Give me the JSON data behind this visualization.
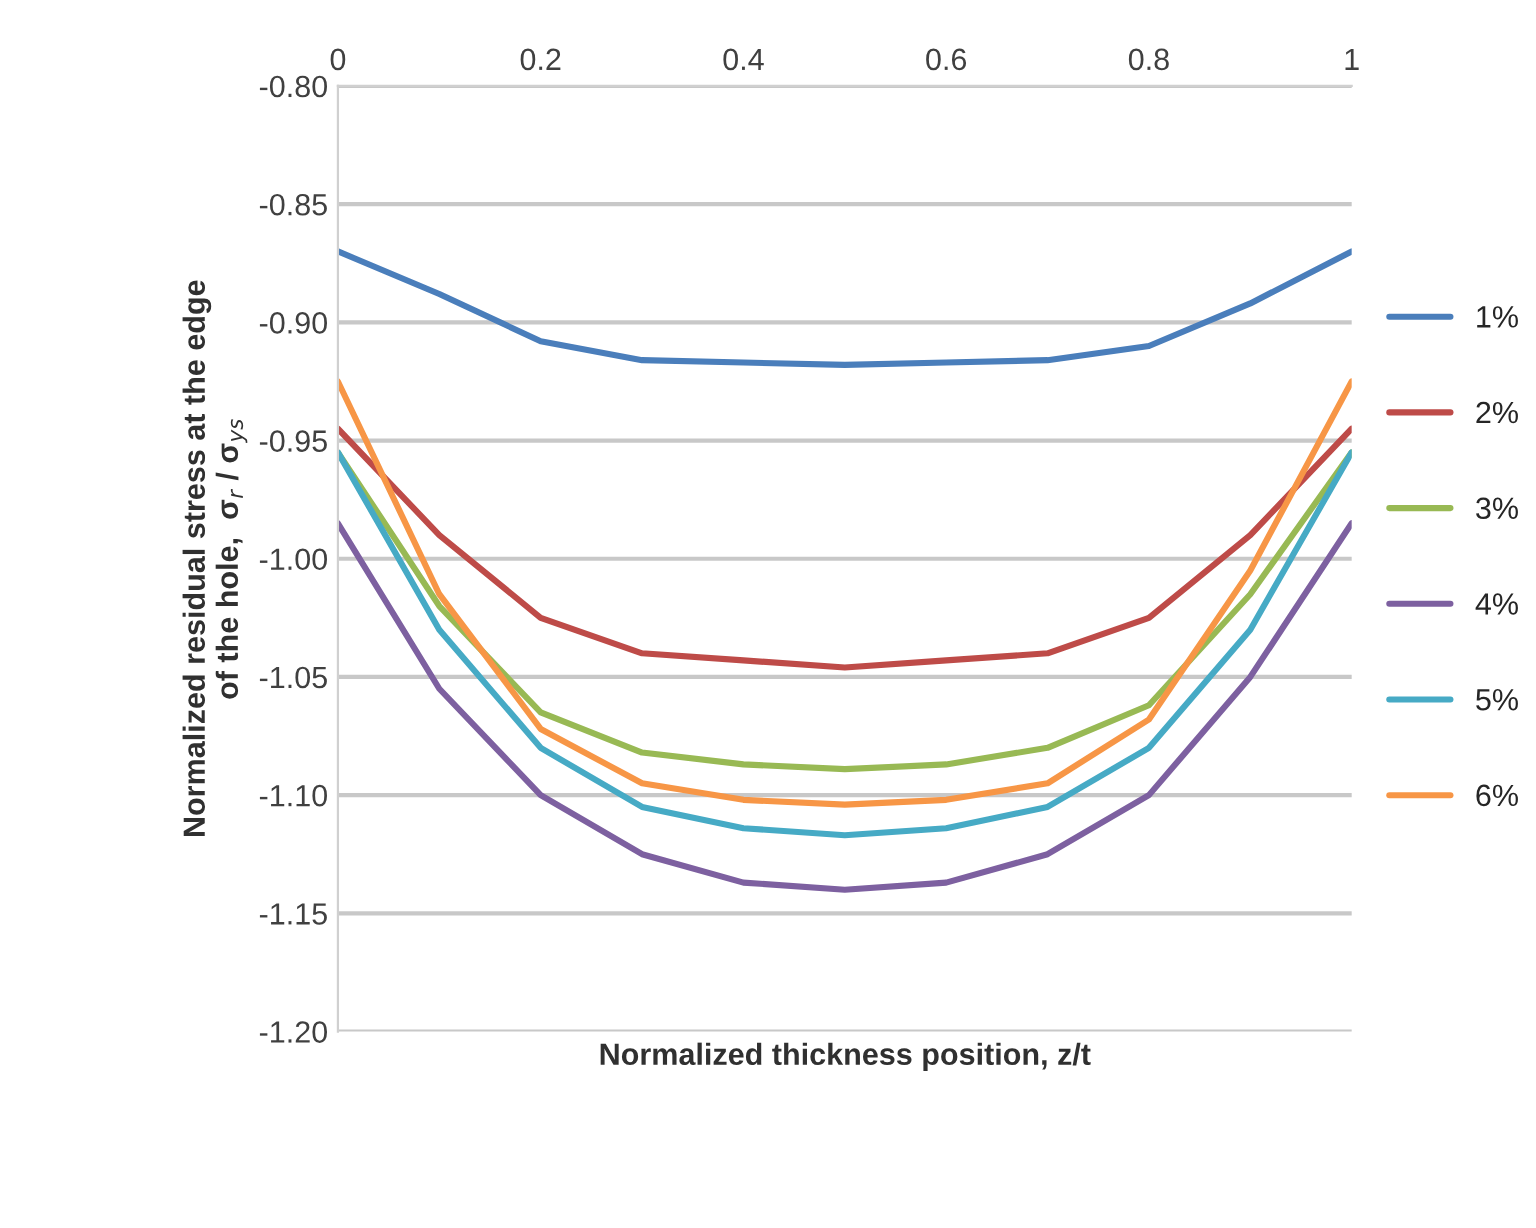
{
  "chart_data": {
    "type": "line",
    "xlabel": "Normalized thickness position, z/t",
    "ylabel": "Normalized residual stress at the edge\nof the hole,  σ$_{r}$ / σ$_{ys}$",
    "x": [
      0,
      0.1,
      0.2,
      0.3,
      0.4,
      0.5,
      0.6,
      0.7,
      0.8,
      0.9,
      1
    ],
    "series": [
      {
        "name": "1%",
        "color": "#4a7ebb",
        "values": [
          -0.87,
          -0.888,
          -0.908,
          -0.916,
          -0.917,
          -0.918,
          -0.917,
          -0.916,
          -0.91,
          -0.892,
          -0.87
        ]
      },
      {
        "name": "2%",
        "color": "#be4b48",
        "values": [
          -0.945,
          -0.99,
          -1.025,
          -1.04,
          -1.043,
          -1.046,
          -1.043,
          -1.04,
          -1.025,
          -0.99,
          -0.945
        ]
      },
      {
        "name": "3%",
        "color": "#98b954",
        "values": [
          -0.955,
          -1.02,
          -1.065,
          -1.082,
          -1.087,
          -1.089,
          -1.087,
          -1.08,
          -1.062,
          -1.015,
          -0.955
        ]
      },
      {
        "name": "4%",
        "color": "#7d60a0",
        "values": [
          -0.985,
          -1.055,
          -1.1,
          -1.125,
          -1.137,
          -1.14,
          -1.137,
          -1.125,
          -1.1,
          -1.05,
          -0.985
        ]
      },
      {
        "name": "5%",
        "color": "#46aac5",
        "values": [
          -0.955,
          -1.03,
          -1.08,
          -1.105,
          -1.114,
          -1.117,
          -1.114,
          -1.105,
          -1.08,
          -1.03,
          -0.955
        ]
      },
      {
        "name": "6%",
        "color": "#f79646",
        "values": [
          -0.925,
          -1.015,
          -1.072,
          -1.095,
          -1.102,
          -1.104,
          -1.102,
          -1.095,
          -1.068,
          -1.005,
          -0.925
        ]
      }
    ],
    "xlim": [
      0,
      1
    ],
    "xticks": [
      0,
      0.2,
      0.4,
      0.6,
      0.8,
      1
    ],
    "ylim": [
      -1.2,
      -0.8
    ],
    "yticks": [
      {
        "value": -1.2,
        "label": "-1.20"
      },
      {
        "value": -1.15,
        "label": "-1.15"
      },
      {
        "value": -1.1,
        "label": "-1.10"
      },
      {
        "value": -1.05,
        "label": "-1.05"
      },
      {
        "value": -1.0,
        "label": "-1.00"
      },
      {
        "value": -0.95,
        "label": "-0.95"
      },
      {
        "value": -0.9,
        "label": "-0.90"
      },
      {
        "value": -0.85,
        "label": "-0.85"
      },
      {
        "value": -0.8,
        "label": "-0.80"
      }
    ],
    "grid": "y",
    "legend": "right",
    "line_style": "solid",
    "marker": "none"
  }
}
